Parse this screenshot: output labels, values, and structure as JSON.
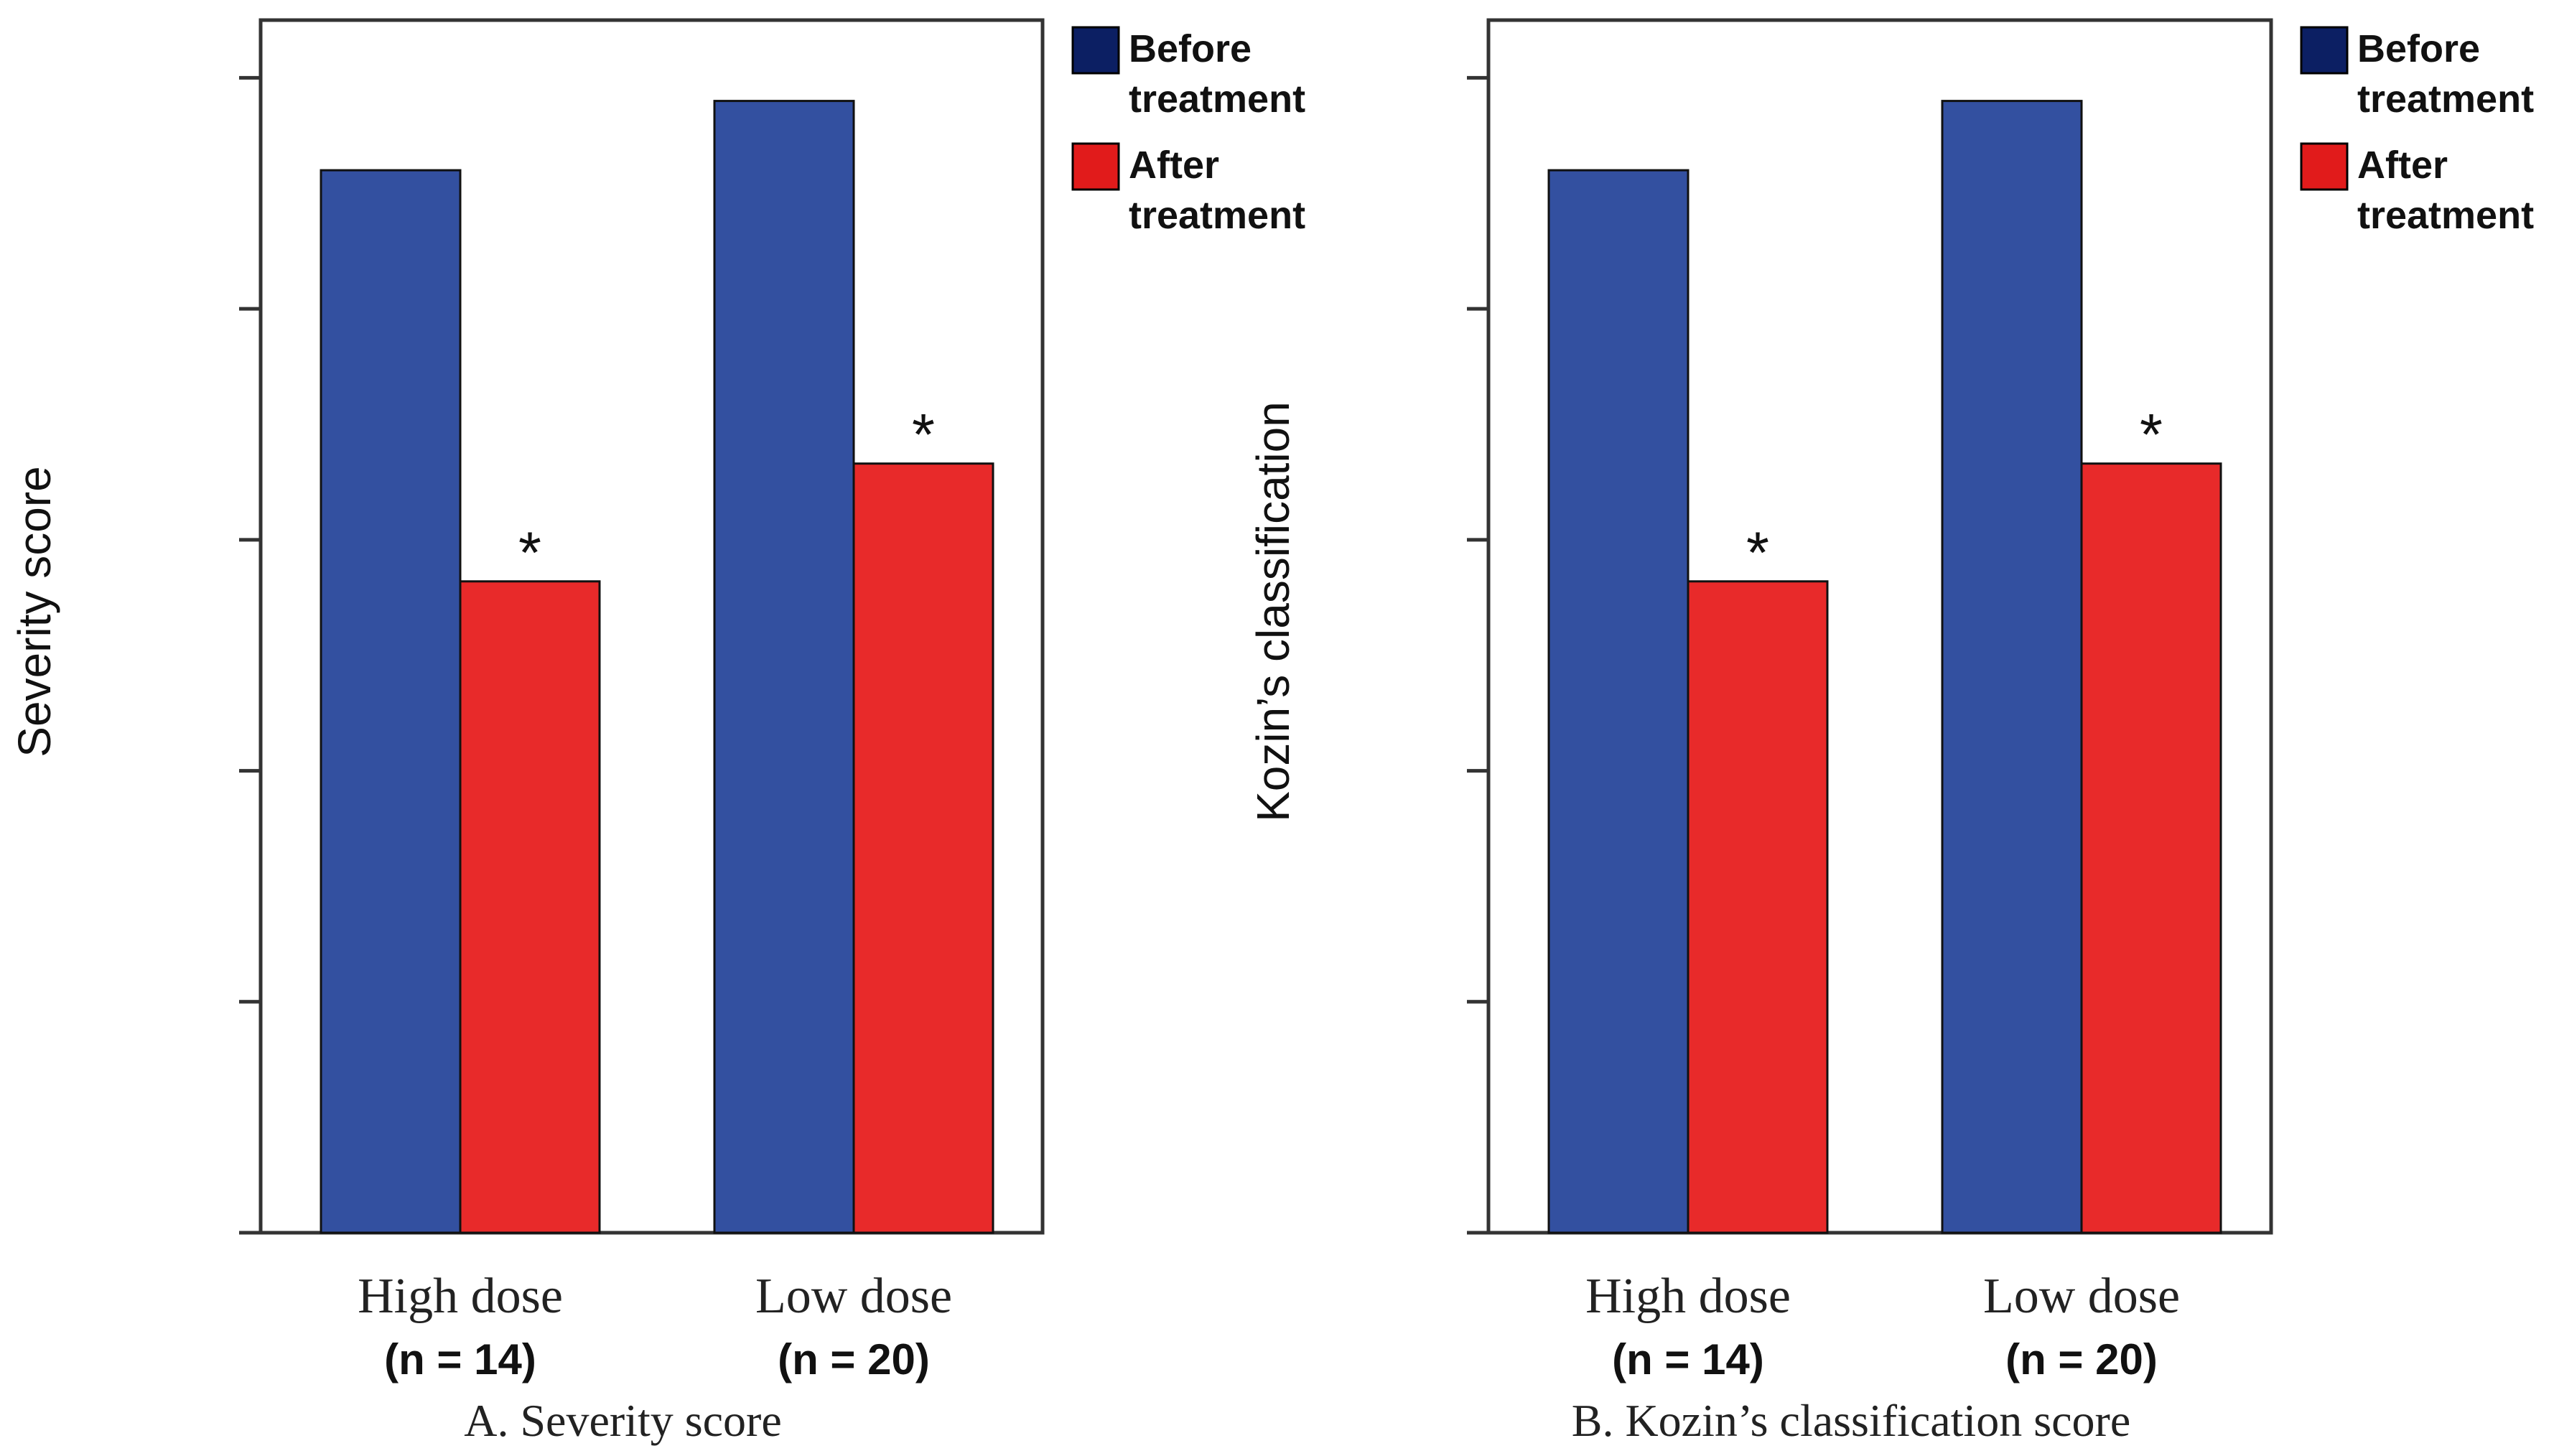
{
  "chart_data": [
    {
      "type": "bar",
      "ylabel": "Severity score",
      "caption": "A. Severity score",
      "categories": [
        "High dose",
        "Low dose"
      ],
      "category_n": [
        "(n = 14)",
        "(n = 20)"
      ],
      "ylim": [
        0,
        5.25
      ],
      "yticks": [
        0,
        1,
        2,
        3,
        4,
        5
      ],
      "series": [
        {
          "name": "Before treatment",
          "values": [
            4.6,
            4.9
          ]
        },
        {
          "name": "After treatment",
          "values": [
            2.82,
            3.33
          ]
        }
      ],
      "annotations": [
        {
          "series": 1,
          "category": 0,
          "text": "*"
        },
        {
          "series": 1,
          "category": 1,
          "text": "*"
        }
      ],
      "legend_placement": "top-right, outside"
    },
    {
      "type": "bar",
      "ylabel": "Kozin’s classification",
      "caption": "B. Kozin’s classification score",
      "categories": [
        "High dose",
        "Low dose"
      ],
      "category_n": [
        "(n = 14)",
        "(n = 20)"
      ],
      "ylim": [
        0,
        5.25
      ],
      "yticks": [
        0,
        1,
        2,
        3,
        4,
        5
      ],
      "series": [
        {
          "name": "Before treatment",
          "values": [
            4.6,
            4.9
          ]
        },
        {
          "name": "After treatment",
          "values": [
            2.82,
            3.33
          ]
        }
      ],
      "annotations": [
        {
          "series": 1,
          "category": 0,
          "text": "*"
        },
        {
          "series": 1,
          "category": 1,
          "text": "*"
        }
      ],
      "legend_placement": "top-right, outside"
    }
  ],
  "legend_labels": [
    [
      "Before",
      "treatment"
    ],
    [
      "After",
      "treatment"
    ]
  ],
  "colors": {
    "before_bar": "#3350a0",
    "after_bar": "#e82a2a",
    "legend_before": "#0c1f63",
    "legend_after": "#e11b1b",
    "axis": "#333333"
  }
}
